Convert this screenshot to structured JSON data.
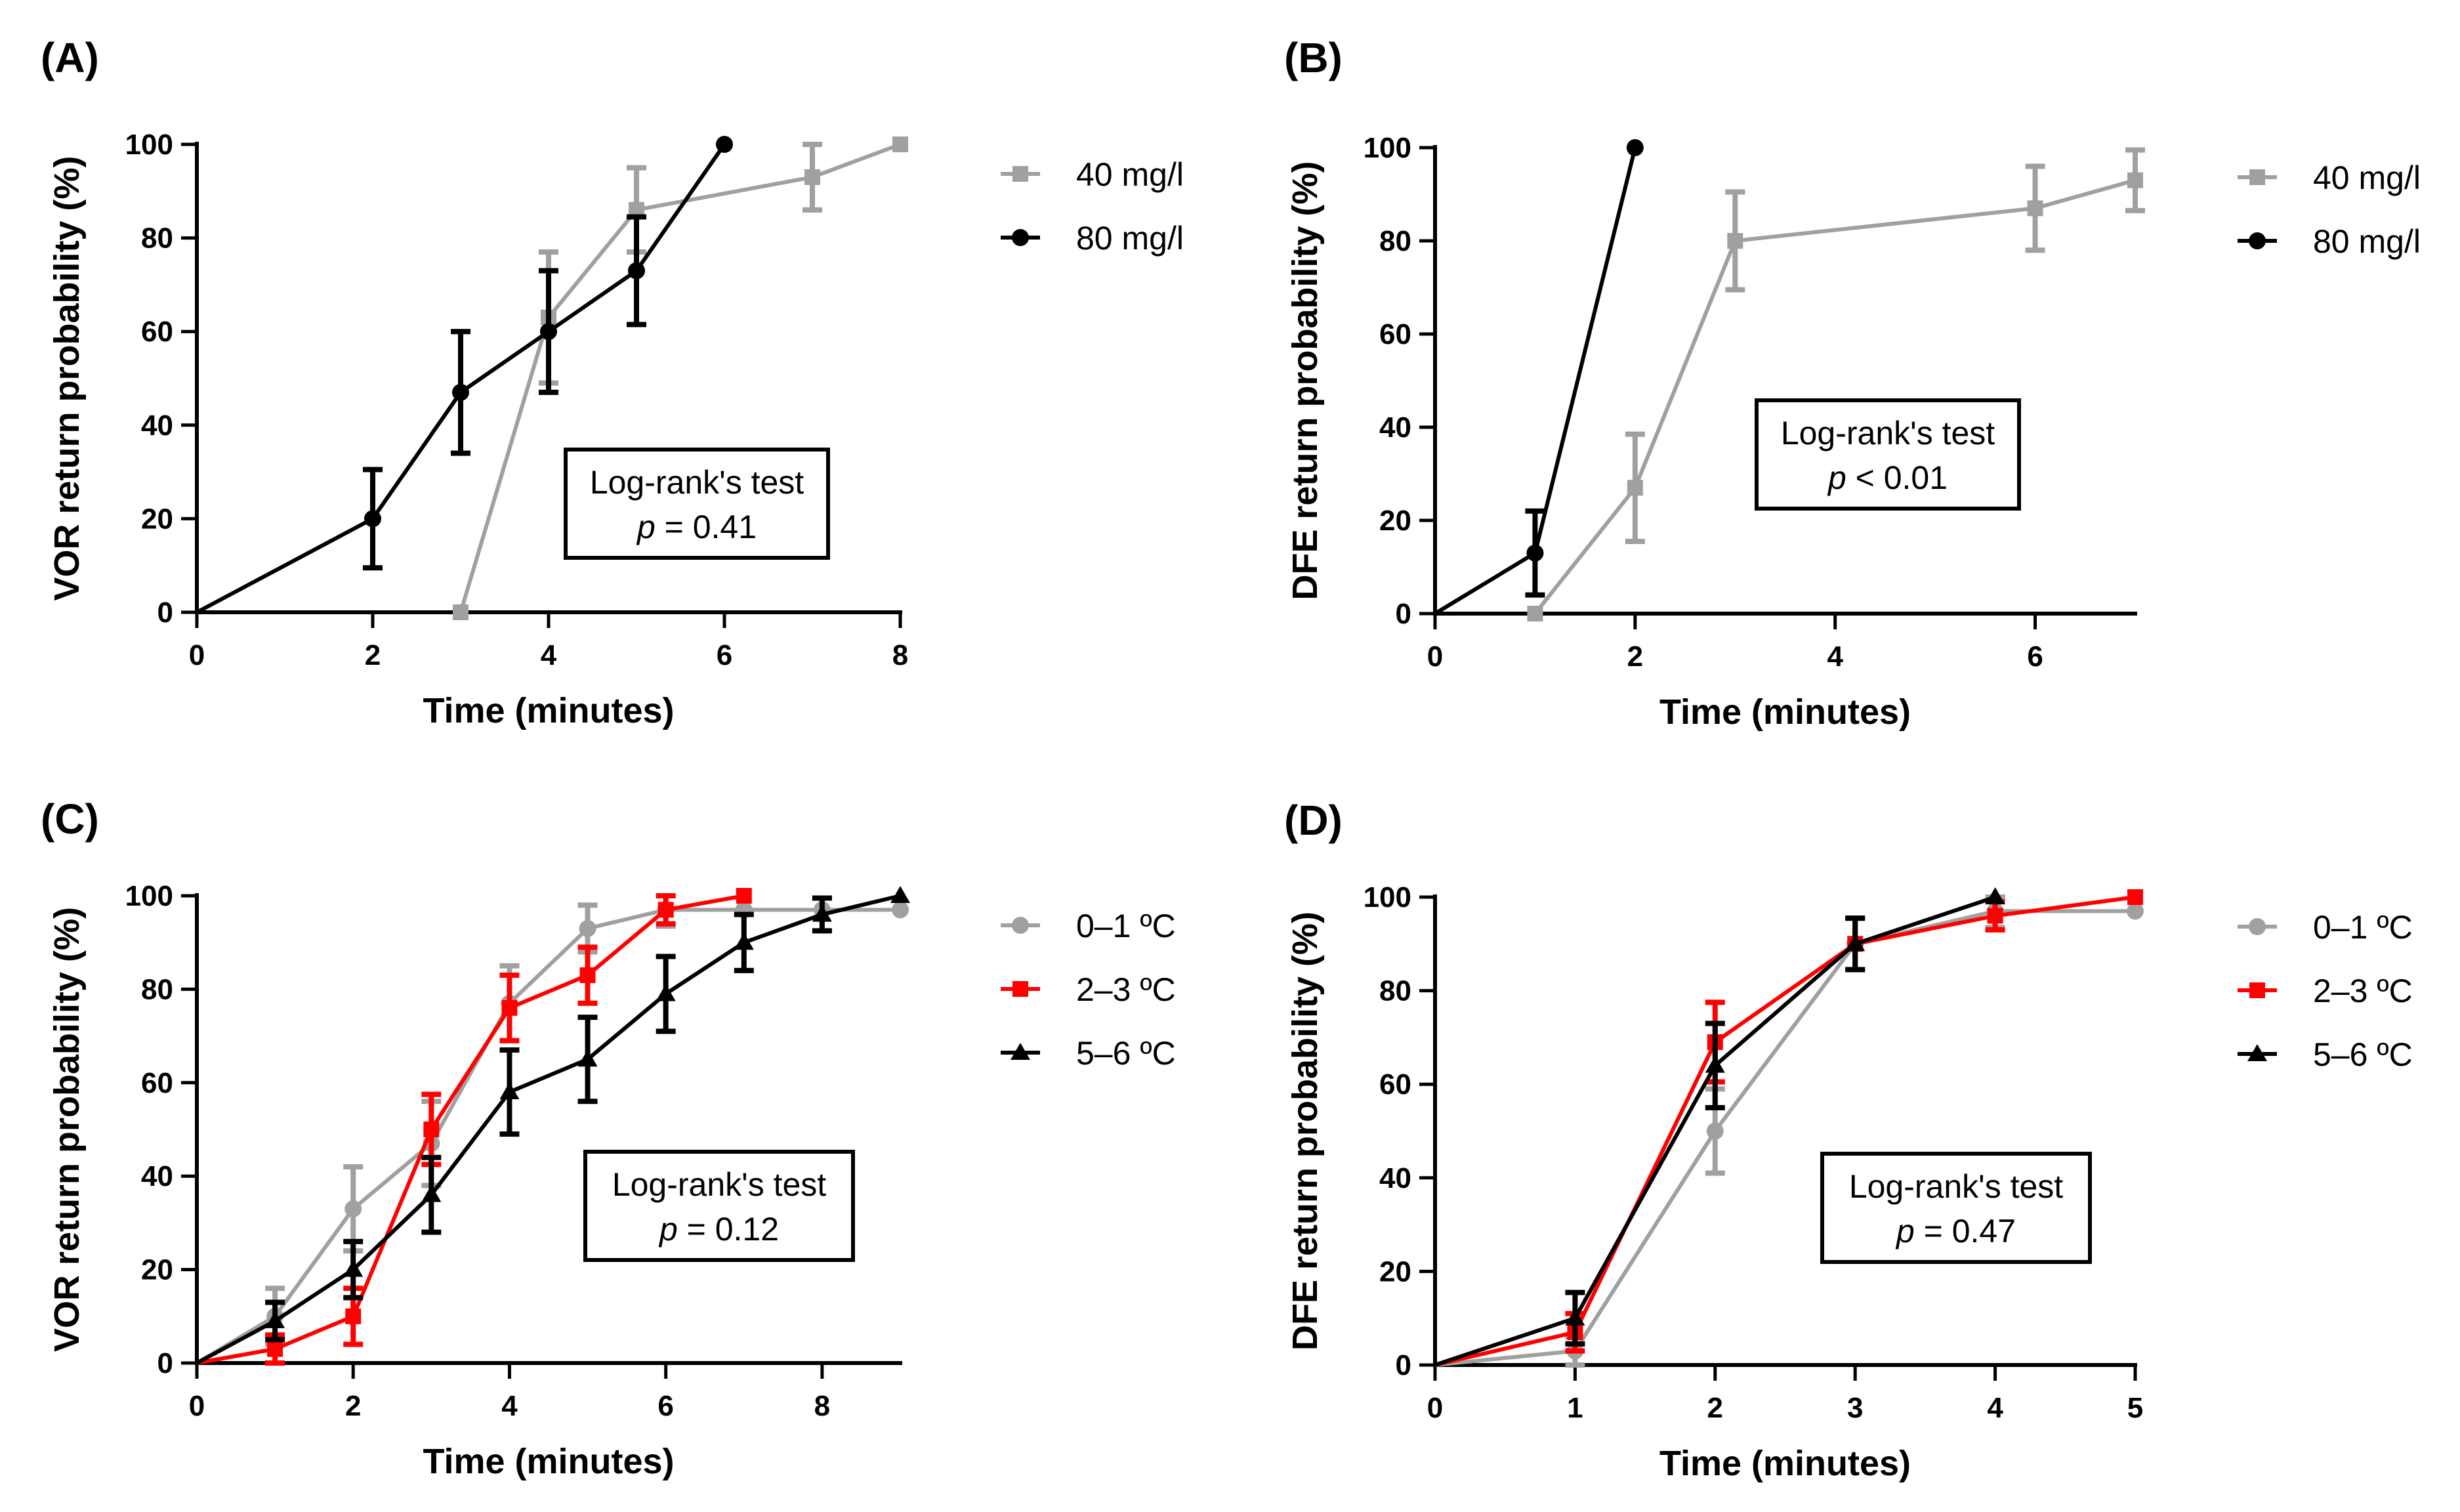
{
  "chart_data": [
    {
      "id": "A",
      "type": "line",
      "panel_label": "(A)",
      "xlabel": "Time (minutes)",
      "ylabel": "VOR return probability (%)",
      "xlim": [
        0,
        8
      ],
      "ylim": [
        0,
        100
      ],
      "xticks": [
        0,
        2,
        4,
        6,
        8
      ],
      "yticks": [
        0,
        20,
        40,
        60,
        80,
        100
      ],
      "test": {
        "title": "Log-rank's test",
        "p_symbol": "p",
        "p_value": "= 0.41"
      },
      "legend_position": "right",
      "series": [
        {
          "name": "40 mg/l",
          "color": "#a0a0a0",
          "marker": "square",
          "x": [
            3,
            4,
            5,
            7,
            8
          ],
          "y": [
            0,
            63,
            86,
            93,
            100
          ],
          "err": [
            0,
            14,
            9,
            7,
            0
          ]
        },
        {
          "name": "80 mg/l",
          "color": "#000000",
          "marker": "circle",
          "x": [
            0,
            2,
            3,
            4,
            5,
            6
          ],
          "y": [
            0,
            20,
            47,
            60,
            73,
            100
          ],
          "err": [
            0,
            10.5,
            13,
            13,
            11.5,
            0
          ]
        }
      ]
    },
    {
      "id": "B",
      "type": "line",
      "panel_label": "(B)",
      "xlabel": "Time (minutes)",
      "ylabel": "DFE return probability (%)",
      "xlim": [
        0,
        7
      ],
      "ylim": [
        0,
        100
      ],
      "xticks": [
        0,
        2,
        4,
        6
      ],
      "yticks": [
        0,
        20,
        40,
        60,
        80,
        100
      ],
      "test": {
        "title": "Log-rank's test",
        "p_symbol": "p",
        "p_value": " < 0.01"
      },
      "legend_position": "right",
      "series": [
        {
          "name": "40 mg/l",
          "color": "#a0a0a0",
          "marker": "square",
          "x": [
            1,
            2,
            3,
            6,
            7
          ],
          "y": [
            0,
            27,
            80,
            87,
            93
          ],
          "err": [
            0,
            11.5,
            10.5,
            9,
            6.5
          ]
        },
        {
          "name": "80 mg/l",
          "color": "#000000",
          "marker": "circle",
          "x": [
            0,
            1,
            2
          ],
          "y": [
            0,
            13,
            100
          ],
          "err": [
            0,
            9,
            0
          ]
        }
      ]
    },
    {
      "id": "C",
      "type": "line",
      "panel_label": "(C)",
      "xlabel": "Time (minutes)",
      "ylabel": "VOR return probability (%)",
      "xlim": [
        0,
        9
      ],
      "ylim": [
        0,
        100
      ],
      "xticks": [
        0,
        2,
        4,
        6,
        8
      ],
      "yticks": [
        0,
        20,
        40,
        60,
        80,
        100
      ],
      "test": {
        "title": "Log-rank's test",
        "p_symbol": "p",
        "p_value": " = 0.12"
      },
      "legend_position": "right",
      "series": [
        {
          "name": "0–1 ºC",
          "color": "#a0a0a0",
          "marker": "circle",
          "x": [
            0,
            1,
            2,
            3,
            4,
            5,
            6,
            7,
            8,
            9
          ],
          "y": [
            0,
            10,
            33,
            47,
            77,
            93,
            97,
            97,
            97,
            97
          ],
          "err": [
            0,
            6,
            9,
            9,
            8,
            5,
            3.5,
            0,
            0,
            0
          ]
        },
        {
          "name": "2–3 ºC",
          "color": "#ff0000",
          "marker": "square",
          "x": [
            0,
            1,
            2,
            3,
            4,
            5,
            6,
            7
          ],
          "y": [
            0,
            3,
            10,
            50,
            76,
            83,
            97,
            100
          ],
          "err": [
            0,
            3,
            6,
            7.5,
            7,
            6,
            3,
            0
          ]
        },
        {
          "name": "5–6 ºC",
          "color": "#000000",
          "marker": "triangle",
          "x": [
            0,
            1,
            2,
            3,
            4,
            5,
            6,
            7,
            8,
            9
          ],
          "y": [
            0,
            9,
            20,
            36,
            58,
            65,
            79,
            90,
            96,
            100
          ],
          "err": [
            0,
            4,
            6,
            8,
            9,
            9,
            8,
            6,
            3.5,
            0
          ]
        }
      ]
    },
    {
      "id": "D",
      "type": "line",
      "panel_label": "(D)",
      "xlabel": "Time (minutes)",
      "ylabel": "DFE return probability (%)",
      "xlim": [
        0,
        5
      ],
      "ylim": [
        0,
        100
      ],
      "xticks": [
        0,
        1,
        2,
        3,
        4,
        5
      ],
      "yticks": [
        0,
        20,
        40,
        60,
        80,
        100
      ],
      "test": {
        "title": "Log-rank's test",
        "p_symbol": "p",
        "p_value": " = 0.47"
      },
      "legend_position": "right",
      "series": [
        {
          "name": "0–1 ºC",
          "color": "#a0a0a0",
          "marker": "circle",
          "x": [
            0,
            1,
            2,
            3,
            4,
            5
          ],
          "y": [
            0,
            3,
            50,
            90,
            97,
            97
          ],
          "err": [
            0,
            3,
            9,
            5.5,
            3.5,
            0
          ]
        },
        {
          "name": "2–3 ºC",
          "color": "#ff0000",
          "marker": "square",
          "x": [
            0,
            1,
            2,
            3,
            4,
            5
          ],
          "y": [
            0,
            7,
            69,
            90,
            96,
            100
          ],
          "err": [
            0,
            4,
            8.5,
            5.5,
            3,
            0
          ]
        },
        {
          "name": "5–6 ºC",
          "color": "#000000",
          "marker": "triangle",
          "x": [
            0,
            1,
            2,
            3,
            4
          ],
          "y": [
            0,
            10,
            64,
            90,
            100
          ],
          "err": [
            0,
            5.5,
            9,
            5.5,
            0
          ]
        }
      ]
    }
  ]
}
